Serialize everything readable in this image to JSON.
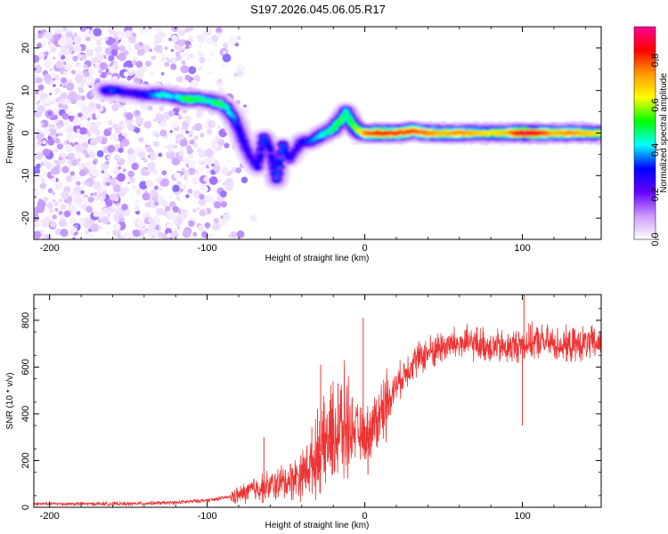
{
  "figure": {
    "title": "S197.2026.045.06.05.R17"
  },
  "chart_data": [
    {
      "type": "heatmap",
      "name": "spectrogram",
      "xlabel": "Height of straight line (km)",
      "ylabel": "Frequency (Hz)",
      "xlim": [
        -210,
        150
      ],
      "ylim": [
        -25,
        25
      ],
      "xticks": [
        -200,
        -100,
        0,
        100
      ],
      "yticks": [
        20,
        10,
        0,
        -10,
        -20
      ],
      "colorbar": {
        "label": "Normalized spectral amplitude",
        "range": [
          0.0,
          0.95
        ],
        "ticks": [
          "0.0",
          "0.2",
          "0.4",
          "0.6",
          "0.8"
        ],
        "tick_values": [
          0.0,
          0.2,
          0.4,
          0.6,
          0.8
        ],
        "colormap": [
          "#ffffff",
          "#cc99ff",
          "#6600ff",
          "#0000ff",
          "#00ffff",
          "#00ff00",
          "#ffff00",
          "#ff9900",
          "#ff0000",
          "#ff0099"
        ]
      },
      "ridge": {
        "description": "dominant frequency track (km, Hz, amplitude)",
        "points": [
          [
            -165,
            10,
            0.3
          ],
          [
            -160,
            10,
            0.35
          ],
          [
            -150,
            9.5,
            0.25
          ],
          [
            -140,
            9,
            0.3
          ],
          [
            -128,
            9,
            0.45
          ],
          [
            -120,
            8.5,
            0.4
          ],
          [
            -112,
            8,
            0.55
          ],
          [
            -105,
            8,
            0.5
          ],
          [
            -98,
            7.5,
            0.45
          ],
          [
            -92,
            7,
            0.55
          ],
          [
            -88,
            6,
            0.45
          ],
          [
            -84,
            4,
            0.4
          ],
          [
            -80,
            1,
            0.3
          ],
          [
            -76,
            -3,
            0.3
          ],
          [
            -72,
            -6,
            0.25
          ],
          [
            -68,
            -8,
            0.3
          ],
          [
            -64,
            -1,
            0.35
          ],
          [
            -60,
            -4,
            0.3
          ],
          [
            -56,
            -11,
            0.35
          ],
          [
            -52,
            -3,
            0.35
          ],
          [
            -48,
            -6,
            0.3
          ],
          [
            -44,
            -4,
            0.25
          ],
          [
            -40,
            -2,
            0.3
          ],
          [
            -35,
            -2,
            0.35
          ],
          [
            -30,
            -1,
            0.4
          ],
          [
            -25,
            0,
            0.45
          ],
          [
            -20,
            1,
            0.5
          ],
          [
            -15,
            3,
            0.55
          ],
          [
            -12,
            5,
            0.45
          ],
          [
            -8,
            2,
            0.55
          ],
          [
            -4,
            0.5,
            0.6
          ],
          [
            0,
            0,
            0.75
          ],
          [
            10,
            0,
            0.85
          ],
          [
            20,
            0,
            0.8
          ],
          [
            30,
            0.5,
            0.8
          ],
          [
            40,
            0,
            0.75
          ],
          [
            50,
            0,
            0.7
          ],
          [
            60,
            0,
            0.75
          ],
          [
            70,
            0,
            0.7
          ],
          [
            80,
            0,
            0.65
          ],
          [
            90,
            0,
            0.7
          ],
          [
            100,
            0,
            0.9
          ],
          [
            110,
            0,
            0.85
          ],
          [
            120,
            0,
            0.7
          ],
          [
            130,
            0,
            0.75
          ],
          [
            140,
            0,
            0.7
          ],
          [
            150,
            0,
            0.65
          ]
        ]
      },
      "noise_region_km": [
        -210,
        -95
      ]
    },
    {
      "type": "line",
      "name": "snr",
      "xlabel": "Height of straight line (km)",
      "ylabel": "SNR (10 * v/v)",
      "xlim": [
        -210,
        150
      ],
      "ylim": [
        0,
        910
      ],
      "xticks": [
        -200,
        -100,
        0,
        100
      ],
      "yticks": [
        0,
        200,
        400,
        600,
        800
      ],
      "color": "#ee3333",
      "trend": {
        "x": [
          -210,
          -150,
          -120,
          -100,
          -80,
          -70,
          -60,
          -50,
          -40,
          -30,
          -20,
          -10,
          0,
          10,
          20,
          30,
          40,
          50,
          60,
          70,
          80,
          90,
          100,
          110,
          120,
          130,
          140,
          150
        ],
        "y": [
          15,
          15,
          20,
          30,
          50,
          80,
          90,
          110,
          140,
          220,
          310,
          350,
          300,
          400,
          520,
          620,
          660,
          690,
          700,
          700,
          690,
          680,
          700,
          710,
          700,
          690,
          700,
          700
        ]
      },
      "spikes": [
        {
          "x": -64,
          "y": 300
        },
        {
          "x": -30,
          "y": 420
        },
        {
          "x": -28,
          "y": 610
        },
        {
          "x": -22,
          "y": 460
        },
        {
          "x": -17,
          "y": 530
        },
        {
          "x": -8,
          "y": 470
        },
        {
          "x": -1,
          "y": 810
        },
        {
          "x": 2,
          "y": 140
        },
        {
          "x": 100,
          "y": 350
        },
        {
          "x": 101,
          "y": 910
        }
      ]
    }
  ]
}
